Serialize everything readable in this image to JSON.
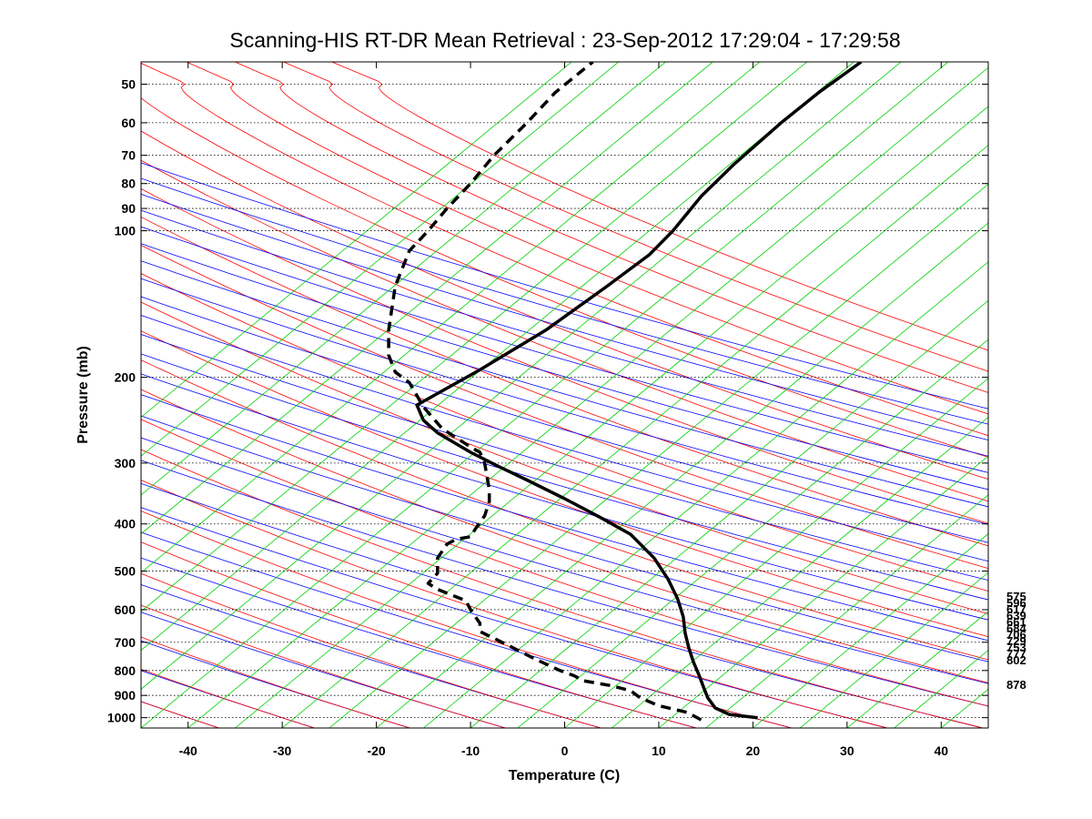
{
  "chart_data": {
    "type": "line",
    "title": "Scanning-HIS RT-DR Mean Retrieval : 23-Sep-2012 17:29:04 - 17:29:58",
    "xlabel": "Temperature (C)",
    "ylabel": "Pressure (mb)",
    "xlim": [
      -45,
      45
    ],
    "ylim": [
      1050,
      45
    ],
    "x_scale": "linear",
    "y_scale": "log",
    "x_ticks": [
      -40,
      -30,
      -20,
      -10,
      0,
      10,
      20,
      30,
      40
    ],
    "y_ticks": [
      50,
      60,
      70,
      80,
      90,
      100,
      200,
      300,
      400,
      500,
      600,
      700,
      800,
      900,
      1000
    ],
    "grid": "horizontal dotted at pressure ticks",
    "background_lines": [
      {
        "name": "dry adiabats",
        "color": "#0000ff"
      },
      {
        "name": "moist adiabats",
        "color": "#ff0000"
      },
      {
        "name": "mixing ratio lines",
        "color": "#00d000"
      }
    ],
    "series": [
      {
        "name": "Temperature",
        "style": "solid",
        "color": "#000000",
        "points": [
          [
            20.5,
            1000
          ],
          [
            17.5,
            985
          ],
          [
            16.0,
            955
          ],
          [
            15.2,
            910
          ],
          [
            14.8,
            870
          ],
          [
            14.3,
            820
          ],
          [
            13.7,
            770
          ],
          [
            13.2,
            720
          ],
          [
            12.8,
            670
          ],
          [
            12.6,
            620
          ],
          [
            12.0,
            570
          ],
          [
            11.0,
            520
          ],
          [
            9.5,
            470
          ],
          [
            7.0,
            420
          ],
          [
            4.0,
            390
          ],
          [
            0.0,
            355
          ],
          [
            -4.0,
            325
          ],
          [
            -7.0,
            305
          ],
          [
            -10.0,
            285
          ],
          [
            -13.5,
            260
          ],
          [
            -15.0,
            245
          ],
          [
            -15.7,
            228
          ],
          [
            -9.0,
            193
          ],
          [
            -2.0,
            160
          ],
          [
            4.5,
            130
          ],
          [
            9.0,
            112
          ],
          [
            11.5,
            100
          ],
          [
            14.5,
            85
          ],
          [
            18.0,
            73
          ],
          [
            23.0,
            60
          ],
          [
            27.0,
            52
          ],
          [
            31.5,
            45
          ]
        ]
      },
      {
        "name": "Dewpoint",
        "style": "dashed",
        "color": "#000000",
        "points": [
          [
            14.5,
            1010
          ],
          [
            13.0,
            975
          ],
          [
            10.0,
            945
          ],
          [
            8.0,
            910
          ],
          [
            7.0,
            880
          ],
          [
            5.0,
            860
          ],
          [
            2.0,
            840
          ],
          [
            1.0,
            820
          ],
          [
            -0.5,
            800
          ],
          [
            -3.0,
            760
          ],
          [
            -4.5,
            735
          ],
          [
            -6.0,
            710
          ],
          [
            -8.0,
            680
          ],
          [
            -9.0,
            665
          ],
          [
            -9.0,
            640
          ],
          [
            -10.0,
            600
          ],
          [
            -10.5,
            575
          ],
          [
            -12.0,
            560
          ],
          [
            -13.5,
            545
          ],
          [
            -14.5,
            530
          ],
          [
            -13.5,
            505
          ],
          [
            -13.5,
            470
          ],
          [
            -12.5,
            440
          ],
          [
            -11.5,
            430
          ],
          [
            -10.0,
            425
          ],
          [
            -9.5,
            410
          ],
          [
            -8.5,
            385
          ],
          [
            -8.0,
            360
          ],
          [
            -8.0,
            340
          ],
          [
            -8.5,
            300
          ],
          [
            -9.0,
            285
          ],
          [
            -10.0,
            278
          ],
          [
            -13.0,
            255
          ],
          [
            -15.0,
            230
          ],
          [
            -16.5,
            205
          ],
          [
            -18.0,
            195
          ],
          [
            -18.7,
            180
          ],
          [
            -18.7,
            160
          ],
          [
            -18.0,
            130
          ],
          [
            -16.5,
            110
          ],
          [
            -14.5,
            100
          ],
          [
            -12.5,
            90
          ],
          [
            -10.0,
            80
          ],
          [
            -7.5,
            70
          ],
          [
            -4.0,
            60
          ],
          [
            -1.0,
            52
          ],
          [
            3.0,
            45
          ]
        ]
      }
    ],
    "right_labels": [
      "575",
      "596",
      "617",
      "639",
      "661",
      "684",
      "706",
      "729",
      "753",
      "777",
      "802",
      "878"
    ]
  }
}
